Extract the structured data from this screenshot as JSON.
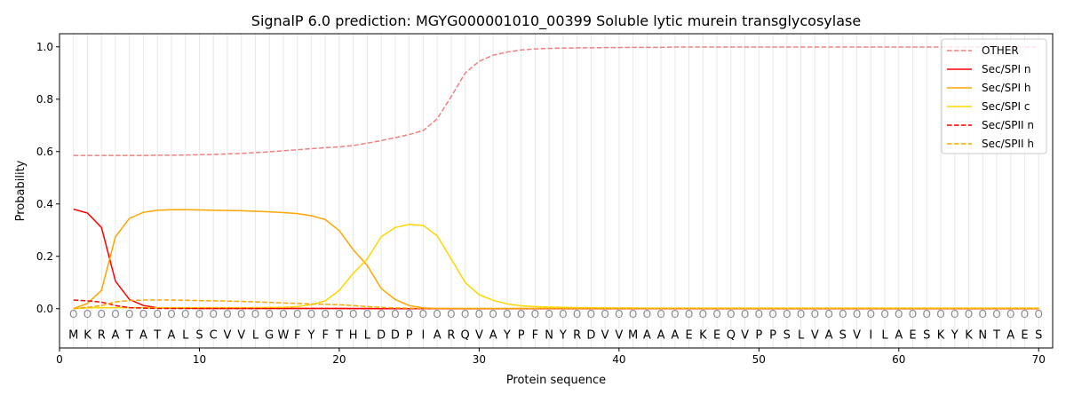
{
  "chart_data": {
    "type": "line",
    "title": "SignalP 6.0 prediction: MGYG000001010_00399 Soluble lytic murein transglycosylase",
    "xlabel": "Protein sequence",
    "ylabel": "Probability",
    "xlim": [
      0,
      71
    ],
    "ylim": [
      -0.15,
      1.05
    ],
    "xticks": [
      0,
      10,
      20,
      30,
      40,
      50,
      60,
      70
    ],
    "yticks": [
      0.0,
      0.2,
      0.4,
      0.6,
      0.8,
      1.0
    ],
    "ytick_labels": [
      "0.0",
      "0.2",
      "0.4",
      "0.6",
      "0.8",
      "1.0"
    ],
    "legend_position": "top-right",
    "sequence": [
      "M",
      "K",
      "R",
      "A",
      "T",
      "A",
      "T",
      "A",
      "L",
      "S",
      "C",
      "V",
      "V",
      "L",
      "G",
      "W",
      "F",
      "Y",
      "F",
      "T",
      "H",
      "L",
      "D",
      "D",
      "P",
      "I",
      "A",
      "R",
      "Q",
      "V",
      "A",
      "Y",
      "P",
      "F",
      "N",
      "Y",
      "R",
      "D",
      "V",
      "V",
      "M",
      "A",
      "A",
      "A",
      "E",
      "K",
      "E",
      "Q",
      "V",
      "P",
      "P",
      "S",
      "L",
      "V",
      "A",
      "S",
      "V",
      "I",
      "L",
      "A",
      "E",
      "S",
      "K",
      "Y",
      "K",
      "N",
      "T",
      "A",
      "E",
      "S"
    ],
    "marker_label": "O",
    "series": [
      {
        "name": "OTHER",
        "color": "#f08080",
        "dash": true,
        "values": [
          0.585,
          0.585,
          0.585,
          0.585,
          0.585,
          0.585,
          0.586,
          0.586,
          0.587,
          0.588,
          0.589,
          0.591,
          0.593,
          0.596,
          0.599,
          0.603,
          0.607,
          0.611,
          0.615,
          0.618,
          0.623,
          0.632,
          0.642,
          0.653,
          0.665,
          0.68,
          0.725,
          0.81,
          0.9,
          0.945,
          0.968,
          0.98,
          0.988,
          0.992,
          0.994,
          0.995,
          0.996,
          0.996,
          0.997,
          0.997,
          0.998,
          0.998,
          0.998,
          0.999,
          0.999,
          0.999,
          0.999,
          0.999,
          0.999,
          0.999,
          0.999,
          0.999,
          0.999,
          0.999,
          0.999,
          0.999,
          0.999,
          0.999,
          0.999,
          0.999,
          0.999,
          0.999,
          0.999,
          0.999,
          0.999,
          0.999,
          0.999,
          0.999,
          0.999,
          0.999
        ]
      },
      {
        "name": "Sec/SPI n",
        "color": "#ff0000",
        "dash": false,
        "values": [
          0.38,
          0.365,
          0.31,
          0.105,
          0.035,
          0.012,
          0.004,
          0.002,
          0.002,
          0.001,
          0.001,
          0.001,
          0.001,
          0.001,
          0.001,
          0.001,
          0.001,
          0.001,
          0.001,
          0.001,
          0.001,
          0.001,
          0,
          0,
          0,
          0,
          0,
          0,
          0,
          0,
          0,
          0,
          0,
          0,
          0,
          0,
          0,
          0,
          0,
          0,
          0,
          0,
          0,
          0,
          0,
          0,
          0,
          0,
          0,
          0,
          0,
          0,
          0,
          0,
          0,
          0,
          0,
          0,
          0,
          0,
          0,
          0,
          0,
          0,
          0,
          0,
          0,
          0,
          0,
          0
        ]
      },
      {
        "name": "Sec/SPI h",
        "color": "#ffa500",
        "dash": false,
        "values": [
          0.0,
          0.02,
          0.07,
          0.275,
          0.345,
          0.368,
          0.376,
          0.378,
          0.378,
          0.377,
          0.376,
          0.375,
          0.374,
          0.372,
          0.37,
          0.367,
          0.363,
          0.355,
          0.34,
          0.298,
          0.225,
          0.165,
          0.077,
          0.035,
          0.012,
          0.003,
          0.001,
          0.001,
          0.001,
          0.001,
          0.001,
          0.001,
          0.001,
          0.001,
          0.001,
          0.001,
          0.001,
          0.001,
          0.001,
          0.001,
          0.001,
          0.001,
          0.001,
          0.001,
          0.001,
          0.001,
          0.001,
          0.001,
          0.001,
          0.001,
          0.001,
          0.001,
          0.001,
          0.001,
          0.001,
          0.001,
          0.001,
          0.001,
          0.001,
          0.001,
          0.001,
          0.001,
          0.001,
          0.001,
          0.001,
          0.001,
          0.001,
          0.001,
          0.001,
          0.001
        ]
      },
      {
        "name": "Sec/SPI c",
        "color": "#ffd700",
        "dash": false,
        "values": [
          0.0,
          0.003,
          0.004,
          0.004,
          0.004,
          0.004,
          0.004,
          0.004,
          0.004,
          0.004,
          0.004,
          0.004,
          0.004,
          0.004,
          0.005,
          0.005,
          0.008,
          0.015,
          0.03,
          0.07,
          0.135,
          0.19,
          0.275,
          0.31,
          0.322,
          0.318,
          0.278,
          0.19,
          0.1,
          0.053,
          0.032,
          0.018,
          0.011,
          0.008,
          0.006,
          0.005,
          0.004,
          0.004,
          0.003,
          0.003,
          0.003,
          0.002,
          0.002,
          0.002,
          0.002,
          0.002,
          0.002,
          0.002,
          0.002,
          0.002,
          0.002,
          0.002,
          0.002,
          0.002,
          0.002,
          0.002,
          0.002,
          0.002,
          0.002,
          0.002,
          0.002,
          0.002,
          0.002,
          0.002,
          0.002,
          0.002,
          0.002,
          0.002,
          0.002,
          0.002
        ]
      },
      {
        "name": "Sec/SPII n",
        "color": "#ff0000",
        "dash": true,
        "values": [
          0.033,
          0.03,
          0.025,
          0.012,
          0.004,
          0.002,
          0.001,
          0.001,
          0.001,
          0.001,
          0.001,
          0.001,
          0.001,
          0.001,
          0.001,
          0.001,
          0.001,
          0.001,
          0.001,
          0.001,
          0,
          0,
          0,
          0,
          0,
          0,
          0,
          0,
          0,
          0,
          0,
          0,
          0,
          0,
          0,
          0,
          0,
          0,
          0,
          0,
          0,
          0,
          0,
          0,
          0,
          0,
          0,
          0,
          0,
          0,
          0,
          0,
          0,
          0,
          0,
          0,
          0,
          0,
          0,
          0,
          0,
          0,
          0,
          0,
          0,
          0,
          0,
          0,
          0,
          0
        ]
      },
      {
        "name": "Sec/SPII h",
        "color": "#ffa500",
        "dash": true,
        "values": [
          0.0,
          0.005,
          0.012,
          0.026,
          0.031,
          0.033,
          0.033,
          0.033,
          0.032,
          0.031,
          0.03,
          0.029,
          0.028,
          0.026,
          0.024,
          0.022,
          0.02,
          0.018,
          0.017,
          0.015,
          0.012,
          0.008,
          0.005,
          0.003,
          0.002,
          0.001,
          0.001,
          0.001,
          0.001,
          0.001,
          0.001,
          0.001,
          0.001,
          0.001,
          0.001,
          0.001,
          0.001,
          0.001,
          0.001,
          0.001,
          0.001,
          0.001,
          0.001,
          0.001,
          0.001,
          0.001,
          0.001,
          0.001,
          0.001,
          0.001,
          0.001,
          0.001,
          0.001,
          0.001,
          0.001,
          0.001,
          0.001,
          0.001,
          0.001,
          0.001,
          0.001,
          0.001,
          0.001,
          0.001,
          0.001,
          0.001,
          0.001,
          0.001,
          0.001,
          0.001
        ]
      }
    ]
  }
}
